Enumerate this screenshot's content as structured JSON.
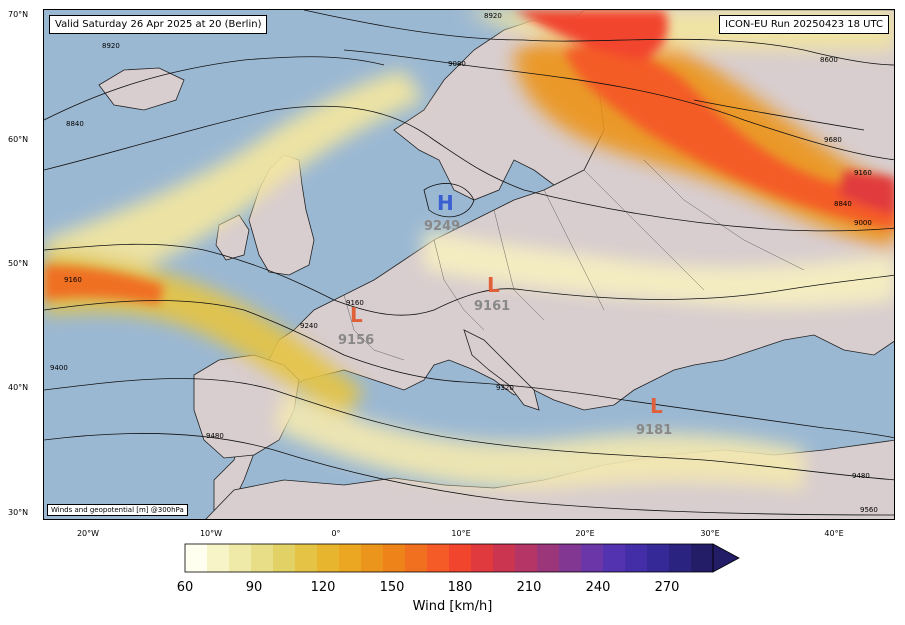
{
  "header": {
    "valid_time": "Valid Saturday 26 Apr 2025 at 20 (Berlin)",
    "model_run": "ICON-EU Run 20250423 18 UTC",
    "product": "Winds and geopotential [m] @300hPa"
  },
  "latitude_labels": [
    "70°N",
    "60°N",
    "50°N",
    "40°N",
    "30°N"
  ],
  "longitude_labels": [
    "20°W",
    "10°W",
    "0°",
    "10°E",
    "20°E",
    "30°E",
    "40°E"
  ],
  "contours": [
    {
      "value": "8600"
    },
    {
      "value": "8840"
    },
    {
      "value": "8920"
    },
    {
      "value": "9080"
    },
    {
      "value": "9000"
    },
    {
      "value": "9160"
    },
    {
      "value": "9240"
    },
    {
      "value": "9320"
    },
    {
      "value": "9400"
    },
    {
      "value": "9480"
    },
    {
      "value": "9560"
    },
    {
      "value": "9680"
    }
  ],
  "pressure_centers": [
    {
      "type": "H",
      "value": "9249",
      "color": "#3a5fd0"
    },
    {
      "type": "L",
      "value": "9161",
      "color": "#e0603a"
    },
    {
      "type": "L",
      "value": "9156",
      "color": "#e0603a"
    },
    {
      "type": "L",
      "value": "9181",
      "color": "#e0603a"
    }
  ],
  "colorbar": {
    "title": "Wind [km/h]",
    "ticks": [
      "60",
      "90",
      "120",
      "150",
      "180",
      "210",
      "240",
      "270"
    ],
    "colors": [
      "#fffff0",
      "#f7f5c8",
      "#efeaa8",
      "#e8de88",
      "#e2d266",
      "#e5c445",
      "#e8b52e",
      "#eba622",
      "#ec951c",
      "#ee8319",
      "#f07020",
      "#f45b27",
      "#f2452e",
      "#e13a3e",
      "#cc3550",
      "#b43566",
      "#9b367b",
      "#823792",
      "#6a36a8",
      "#5433b0",
      "#432ea7",
      "#352997",
      "#2a2380",
      "#231c66"
    ]
  }
}
